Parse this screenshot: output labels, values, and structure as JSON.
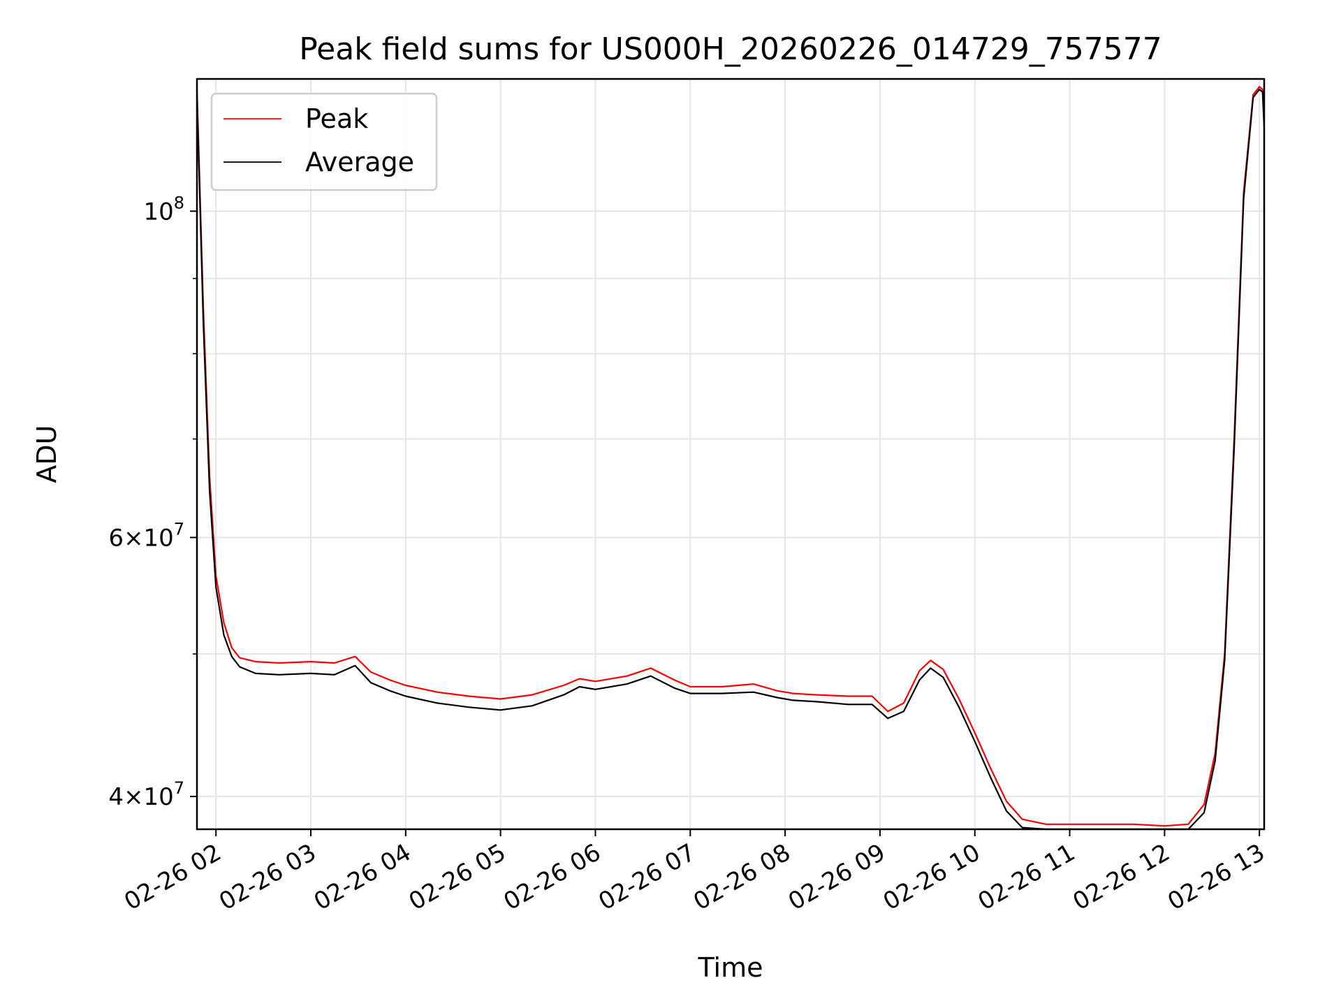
{
  "chart_data": {
    "type": "line",
    "title": "Peak field sums for US000H_20260226_014729_757577",
    "xlabel": "Time",
    "ylabel": "ADU",
    "x_scale": "time",
    "y_scale": "log",
    "xlim": [
      "2026-02-26 01:48",
      "2026-02-26 13:03"
    ],
    "ylim": [
      38000000,
      123000000
    ],
    "x_tick_labels": [
      "02-26 02",
      "02-26 03",
      "02-26 04",
      "02-26 05",
      "02-26 06",
      "02-26 07",
      "02-26 08",
      "02-26 09",
      "02-26 10",
      "02-26 11",
      "02-26 12",
      "02-26 13"
    ],
    "x_ticks": [
      "2026-02-26 02:00",
      "2026-02-26 03:00",
      "2026-02-26 04:00",
      "2026-02-26 05:00",
      "2026-02-26 06:00",
      "2026-02-26 07:00",
      "2026-02-26 08:00",
      "2026-02-26 09:00",
      "2026-02-26 10:00",
      "2026-02-26 11:00",
      "2026-02-26 12:00",
      "2026-02-26 13:00"
    ],
    "y_major_ticks": [
      40000000,
      60000000,
      100000000
    ],
    "y_minor_ticks": [
      50000000,
      70000000,
      80000000,
      90000000
    ],
    "grid": true,
    "legend_position": "top-left",
    "series": [
      {
        "name": "Peak",
        "color": "#ff0000",
        "x": [
          "2026-02-26 01:48",
          "2026-02-26 01:52",
          "2026-02-26 01:56",
          "2026-02-26 02:00",
          "2026-02-26 02:05",
          "2026-02-26 02:10",
          "2026-02-26 02:15",
          "2026-02-26 02:25",
          "2026-02-26 02:40",
          "2026-02-26 03:00",
          "2026-02-26 03:15",
          "2026-02-26 03:28",
          "2026-02-26 03:38",
          "2026-02-26 03:50",
          "2026-02-26 04:00",
          "2026-02-26 04:20",
          "2026-02-26 04:40",
          "2026-02-26 05:00",
          "2026-02-26 05:20",
          "2026-02-26 05:40",
          "2026-02-26 05:50",
          "2026-02-26 06:00",
          "2026-02-26 06:20",
          "2026-02-26 06:35",
          "2026-02-26 06:50",
          "2026-02-26 07:00",
          "2026-02-26 07:20",
          "2026-02-26 07:40",
          "2026-02-26 07:55",
          "2026-02-26 08:05",
          "2026-02-26 08:20",
          "2026-02-26 08:40",
          "2026-02-26 08:55",
          "2026-02-26 09:05",
          "2026-02-26 09:15",
          "2026-02-26 09:25",
          "2026-02-26 09:32",
          "2026-02-26 09:40",
          "2026-02-26 09:50",
          "2026-02-26 10:00",
          "2026-02-26 10:10",
          "2026-02-26 10:20",
          "2026-02-26 10:30",
          "2026-02-26 10:45",
          "2026-02-26 11:00",
          "2026-02-26 11:20",
          "2026-02-26 11:40",
          "2026-02-26 12:00",
          "2026-02-26 12:15",
          "2026-02-26 12:25",
          "2026-02-26 12:32",
          "2026-02-26 12:38",
          "2026-02-26 12:44",
          "2026-02-26 12:50",
          "2026-02-26 12:56",
          "2026-02-26 13:00",
          "2026-02-26 13:02",
          "2026-02-26 13:03"
        ],
        "y": [
          121000000,
          86000000,
          66000000,
          56500000,
          52500000,
          50500000,
          49700000,
          49400000,
          49300000,
          49400000,
          49300000,
          49800000,
          48600000,
          48000000,
          47600000,
          47100000,
          46800000,
          46600000,
          46900000,
          47600000,
          48100000,
          47900000,
          48300000,
          48900000,
          48000000,
          47500000,
          47500000,
          47700000,
          47200000,
          47000000,
          46900000,
          46800000,
          46800000,
          45700000,
          46300000,
          48700000,
          49500000,
          48800000,
          46600000,
          44200000,
          41800000,
          39700000,
          38600000,
          38300000,
          38300000,
          38300000,
          38300000,
          38200000,
          38300000,
          39500000,
          42800000,
          50000000,
          70000000,
          103000000,
          120000000,
          121500000,
          121000000,
          116000000
        ]
      },
      {
        "name": "Average",
        "color": "#000000",
        "x": [
          "2026-02-26 01:48",
          "2026-02-26 01:52",
          "2026-02-26 01:56",
          "2026-02-26 02:00",
          "2026-02-26 02:05",
          "2026-02-26 02:10",
          "2026-02-26 02:15",
          "2026-02-26 02:25",
          "2026-02-26 02:40",
          "2026-02-26 03:00",
          "2026-02-26 03:15",
          "2026-02-26 03:28",
          "2026-02-26 03:38",
          "2026-02-26 03:50",
          "2026-02-26 04:00",
          "2026-02-26 04:20",
          "2026-02-26 04:40",
          "2026-02-26 05:00",
          "2026-02-26 05:20",
          "2026-02-26 05:40",
          "2026-02-26 05:50",
          "2026-02-26 06:00",
          "2026-02-26 06:20",
          "2026-02-26 06:35",
          "2026-02-26 06:50",
          "2026-02-26 07:00",
          "2026-02-26 07:20",
          "2026-02-26 07:40",
          "2026-02-26 07:55",
          "2026-02-26 08:05",
          "2026-02-26 08:20",
          "2026-02-26 08:40",
          "2026-02-26 08:55",
          "2026-02-26 09:05",
          "2026-02-26 09:15",
          "2026-02-26 09:25",
          "2026-02-26 09:32",
          "2026-02-26 09:40",
          "2026-02-26 09:50",
          "2026-02-26 10:00",
          "2026-02-26 10:10",
          "2026-02-26 10:20",
          "2026-02-26 10:30",
          "2026-02-26 10:45",
          "2026-02-26 11:00",
          "2026-02-26 11:20",
          "2026-02-26 11:40",
          "2026-02-26 12:00",
          "2026-02-26 12:15",
          "2026-02-26 12:25",
          "2026-02-26 12:32",
          "2026-02-26 12:38",
          "2026-02-26 12:44",
          "2026-02-26 12:50",
          "2026-02-26 12:56",
          "2026-02-26 13:00",
          "2026-02-26 13:02",
          "2026-02-26 13:03"
        ],
        "y": [
          120000000,
          84000000,
          64500000,
          55500000,
          51500000,
          49800000,
          49000000,
          48500000,
          48400000,
          48500000,
          48400000,
          49100000,
          47800000,
          47200000,
          46800000,
          46300000,
          46000000,
          45800000,
          46100000,
          46900000,
          47500000,
          47300000,
          47700000,
          48300000,
          47400000,
          47000000,
          47000000,
          47100000,
          46700000,
          46500000,
          46400000,
          46200000,
          46200000,
          45200000,
          45700000,
          48000000,
          48900000,
          48200000,
          46000000,
          43600000,
          41200000,
          39100000,
          38100000,
          37800000,
          37800000,
          37800000,
          37800000,
          37700000,
          37800000,
          39000000,
          42300000,
          49500000,
          69000000,
          102000000,
          119500000,
          121000000,
          120500000,
          114000000
        ]
      }
    ]
  }
}
